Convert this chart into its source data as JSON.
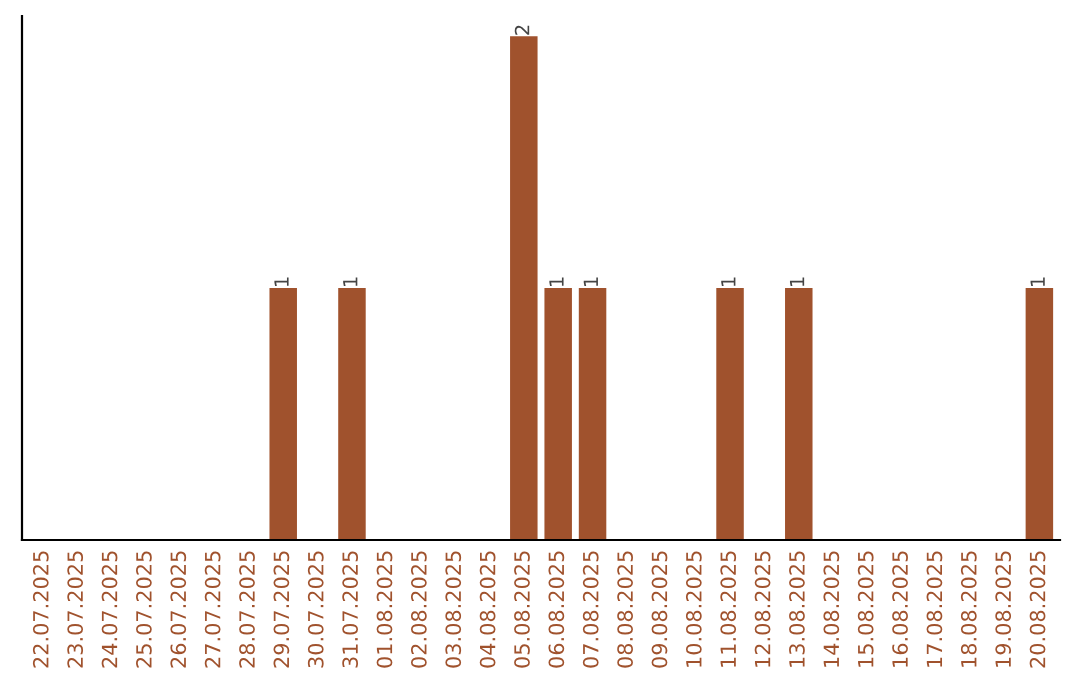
{
  "chart_data": {
    "type": "bar",
    "categories": [
      "22.07.2025",
      "23.07.2025",
      "24.07.2025",
      "25.07.2025",
      "26.07.2025",
      "27.07.2025",
      "28.07.2025",
      "29.07.2025",
      "30.07.2025",
      "31.07.2025",
      "01.08.2025",
      "02.08.2025",
      "03.08.2025",
      "04.08.2025",
      "05.08.2025",
      "06.08.2025",
      "07.08.2025",
      "08.08.2025",
      "09.08.2025",
      "10.08.2025",
      "11.08.2025",
      "12.08.2025",
      "13.08.2025",
      "14.08.2025",
      "15.08.2025",
      "16.08.2025",
      "17.08.2025",
      "18.08.2025",
      "19.08.2025",
      "20.08.2025"
    ],
    "values": [
      0,
      0,
      0,
      0,
      0,
      0,
      0,
      1,
      0,
      1,
      0,
      0,
      0,
      0,
      2,
      1,
      1,
      0,
      0,
      0,
      1,
      0,
      1,
      0,
      0,
      0,
      0,
      0,
      0,
      1
    ],
    "color": "#a0522d",
    "value_labels": [
      null,
      null,
      null,
      null,
      null,
      null,
      null,
      "1",
      null,
      "1",
      null,
      null,
      null,
      null,
      "2",
      "1",
      "1",
      null,
      null,
      null,
      "1",
      null,
      "1",
      null,
      null,
      null,
      null,
      null,
      null,
      "1"
    ],
    "tick_labels": "x",
    "grid": false,
    "legend": false
  }
}
